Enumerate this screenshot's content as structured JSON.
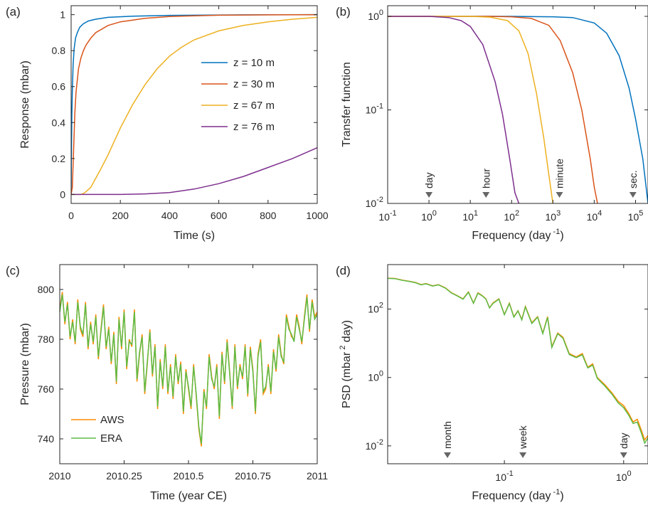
{
  "colors": {
    "blue": "#0072bd",
    "red": "#d95319",
    "yellow": "#edb120",
    "purple": "#7e2f8e",
    "orange": "#ff8c00",
    "green": "#5dbb46",
    "marker": "#666666"
  },
  "chart_data": [
    {
      "panel": "(a)",
      "type": "line",
      "xlabel": "Time (s)",
      "ylabel": "Response (mbar)",
      "xlim": [
        0,
        1000
      ],
      "ylim": [
        -0.05,
        1.05
      ],
      "xticks": [
        0,
        200,
        400,
        600,
        800,
        1000
      ],
      "yticks": [
        0,
        0.2,
        0.4,
        0.6,
        0.8,
        1
      ],
      "xtick_labels": [
        "0",
        "200",
        "400",
        "600",
        "800",
        "1000"
      ],
      "ytick_labels": [
        "0",
        "0.2",
        "0.4",
        "0.6",
        "0.8",
        "1"
      ],
      "legend": "inside right",
      "series": [
        {
          "name": "z = 10 m",
          "color": "blue",
          "x": [
            0,
            1,
            3,
            5,
            8,
            12,
            18,
            25,
            35,
            50,
            70,
            100,
            150,
            250,
            400,
            700,
            1000
          ],
          "y": [
            0,
            0.18,
            0.43,
            0.58,
            0.72,
            0.81,
            0.87,
            0.9,
            0.93,
            0.95,
            0.965,
            0.975,
            0.985,
            0.992,
            0.996,
            0.999,
            1
          ]
        },
        {
          "name": "z = 30 m",
          "color": "red",
          "x": [
            0,
            5,
            10,
            15,
            20,
            30,
            40,
            50,
            60,
            80,
            100,
            150,
            200,
            300,
            400,
            600,
            800,
            1000
          ],
          "y": [
            0,
            0.04,
            0.25,
            0.45,
            0.57,
            0.7,
            0.76,
            0.8,
            0.83,
            0.87,
            0.9,
            0.94,
            0.96,
            0.98,
            0.99,
            0.997,
            0.999,
            1
          ]
        },
        {
          "name": "z = 67 m",
          "color": "yellow",
          "x": [
            0,
            40,
            50,
            60,
            80,
            100,
            120,
            150,
            200,
            250,
            300,
            350,
            400,
            450,
            500,
            600,
            700,
            800,
            900,
            1000
          ],
          "y": [
            0,
            0,
            0.005,
            0.015,
            0.04,
            0.09,
            0.14,
            0.22,
            0.37,
            0.5,
            0.61,
            0.7,
            0.77,
            0.82,
            0.86,
            0.91,
            0.94,
            0.96,
            0.975,
            0.985
          ]
        },
        {
          "name": "z = 76 m",
          "color": "purple",
          "x": [
            0,
            200,
            300,
            400,
            500,
            600,
            700,
            800,
            900,
            1000
          ],
          "y": [
            0,
            0,
            0.003,
            0.01,
            0.03,
            0.06,
            0.1,
            0.15,
            0.2,
            0.26
          ]
        }
      ]
    },
    {
      "panel": "(b)",
      "type": "line",
      "xscale": "log",
      "yscale": "log",
      "xlabel": "Frequency (day",
      "xlabel_exp": "-1",
      "xlabel_end": ")",
      "ylabel": "Transfer function",
      "xlim": [
        0.1,
        200000
      ],
      "ylim": [
        0.01,
        1.3
      ],
      "xticks": [
        0.1,
        1,
        10,
        100,
        1000,
        10000,
        100000
      ],
      "xtick_exps": [
        "-1",
        "0",
        "1",
        "2",
        "3",
        "4",
        "5"
      ],
      "yticks": [
        0.01,
        0.1,
        1
      ],
      "ytick_exps": [
        "-2",
        "-1",
        "0"
      ],
      "markers": [
        {
          "label": "day",
          "x": 1
        },
        {
          "label": "hour",
          "x": 24
        },
        {
          "label": "minute",
          "x": 1440
        },
        {
          "label": "sec.",
          "x": 86400
        }
      ],
      "series": [
        {
          "name": "z = 10 m",
          "color": "blue",
          "x": [
            0.1,
            100,
            1000,
            3000,
            10000,
            20000,
            40000,
            70000,
            100000,
            150000,
            200000
          ],
          "y": [
            1,
            1,
            0.99,
            0.97,
            0.85,
            0.66,
            0.38,
            0.17,
            0.08,
            0.03,
            0.01
          ]
        },
        {
          "name": "z = 30 m",
          "color": "red",
          "x": [
            0.1,
            30,
            100,
            300,
            800,
            1500,
            3000,
            5000,
            8000,
            10000,
            12000
          ],
          "y": [
            1,
            1,
            0.99,
            0.95,
            0.8,
            0.55,
            0.25,
            0.1,
            0.03,
            0.015,
            0.01
          ]
        },
        {
          "name": "z = 67 m",
          "color": "yellow",
          "x": [
            0.1,
            10,
            30,
            80,
            150,
            250,
            400,
            600,
            800,
            1000
          ],
          "y": [
            1,
            1,
            0.98,
            0.9,
            0.7,
            0.4,
            0.15,
            0.05,
            0.02,
            0.01
          ]
        },
        {
          "name": "z = 76 m",
          "color": "purple",
          "x": [
            0.1,
            1,
            3,
            6,
            10,
            20,
            40,
            60,
            90,
            120,
            150
          ],
          "y": [
            1,
            1,
            0.97,
            0.9,
            0.78,
            0.5,
            0.2,
            0.09,
            0.03,
            0.013,
            0.01
          ]
        }
      ]
    },
    {
      "panel": "(c)",
      "type": "line",
      "xlabel": "Time (year CE)",
      "ylabel": "Pressure (mbar)",
      "xlim": [
        2010,
        2011
      ],
      "ylim": [
        730,
        810
      ],
      "xticks": [
        2010,
        2010.25,
        2010.5,
        2010.75,
        2011
      ],
      "xtick_labels": [
        "2010",
        "2010.25",
        "2010.5",
        "2010.75",
        "2011"
      ],
      "yticks": [
        740,
        760,
        780,
        800
      ],
      "ytick_labels": [
        "740",
        "760",
        "780",
        "800"
      ],
      "legend": "bottom-left",
      "series": [
        {
          "name": "AWS",
          "color": "orange",
          "x": [
            2010,
            2010.01,
            2010.02,
            2010.03,
            2010.04,
            2010.05,
            2010.06,
            2010.07,
            2010.08,
            2010.09,
            2010.1,
            2010.11,
            2010.12,
            2010.13,
            2010.14,
            2010.15,
            2010.16,
            2010.17,
            2010.18,
            2010.19,
            2010.2,
            2010.21,
            2010.22,
            2010.23,
            2010.24,
            2010.25,
            2010.26,
            2010.27,
            2010.28,
            2010.29,
            2010.3,
            2010.31,
            2010.32,
            2010.33,
            2010.34,
            2010.35,
            2010.36,
            2010.37,
            2010.38,
            2010.39,
            2010.4,
            2010.41,
            2010.42,
            2010.43,
            2010.44,
            2010.45,
            2010.46,
            2010.47,
            2010.48,
            2010.49,
            2010.5,
            2010.51,
            2010.52,
            2010.53,
            2010.54,
            2010.55,
            2010.56,
            2010.57,
            2010.58,
            2010.59,
            2010.6,
            2010.61,
            2010.62,
            2010.63,
            2010.64,
            2010.65,
            2010.66,
            2010.67,
            2010.68,
            2010.69,
            2010.7,
            2010.71,
            2010.72,
            2010.73,
            2010.74,
            2010.75,
            2010.76,
            2010.77,
            2010.78,
            2010.79,
            2010.8,
            2010.81,
            2010.82,
            2010.83,
            2010.84,
            2010.85,
            2010.86,
            2010.87,
            2010.88,
            2010.89,
            2010.9,
            2010.91,
            2010.92,
            2010.93,
            2010.94,
            2010.95,
            2010.96,
            2010.97,
            2010.98,
            2010.99,
            2011
          ],
          "y": [
            792,
            799,
            786,
            795,
            780,
            788,
            778,
            796,
            784,
            781,
            795,
            776,
            787,
            778,
            790,
            772,
            784,
            794,
            776,
            785,
            770,
            783,
            762,
            789,
            776,
            792,
            768,
            780,
            777,
            792,
            763,
            774,
            782,
            758,
            770,
            784,
            765,
            778,
            752,
            772,
            760,
            778,
            758,
            770,
            756,
            774,
            762,
            771,
            750,
            768,
            760,
            752,
            770,
            757,
            744,
            737,
            760,
            752,
            774,
            765,
            760,
            770,
            748,
            775,
            762,
            780,
            767,
            752,
            778,
            760,
            770,
            764,
            778,
            757,
            777,
            768,
            750,
            774,
            780,
            758,
            760,
            770,
            758,
            776,
            767,
            782,
            774,
            770,
            790,
            785,
            781,
            780,
            790,
            785,
            778,
            789,
            798,
            783,
            796,
            789,
            791
          ]
        },
        {
          "name": "ERA",
          "color": "green",
          "x": [
            2010,
            2010.01,
            2010.02,
            2010.03,
            2010.04,
            2010.05,
            2010.06,
            2010.07,
            2010.08,
            2010.09,
            2010.1,
            2010.11,
            2010.12,
            2010.13,
            2010.14,
            2010.15,
            2010.16,
            2010.17,
            2010.18,
            2010.19,
            2010.2,
            2010.21,
            2010.22,
            2010.23,
            2010.24,
            2010.25,
            2010.26,
            2010.27,
            2010.28,
            2010.29,
            2010.3,
            2010.31,
            2010.32,
            2010.33,
            2010.34,
            2010.35,
            2010.36,
            2010.37,
            2010.38,
            2010.39,
            2010.4,
            2010.41,
            2010.42,
            2010.43,
            2010.44,
            2010.45,
            2010.46,
            2010.47,
            2010.48,
            2010.49,
            2010.5,
            2010.51,
            2010.52,
            2010.53,
            2010.54,
            2010.55,
            2010.56,
            2010.57,
            2010.58,
            2010.59,
            2010.6,
            2010.61,
            2010.62,
            2010.63,
            2010.64,
            2010.65,
            2010.66,
            2010.67,
            2010.68,
            2010.69,
            2010.7,
            2010.71,
            2010.72,
            2010.73,
            2010.74,
            2010.75,
            2010.76,
            2010.77,
            2010.78,
            2010.79,
            2010.8,
            2010.81,
            2010.82,
            2010.83,
            2010.84,
            2010.85,
            2010.86,
            2010.87,
            2010.88,
            2010.89,
            2010.9,
            2010.91,
            2010.92,
            2010.93,
            2010.94,
            2010.95,
            2010.96,
            2010.97,
            2010.98,
            2010.99,
            2011
          ],
          "y": [
            791,
            798,
            787,
            794,
            781,
            787,
            779,
            795,
            785,
            782,
            794,
            777,
            786,
            779,
            789,
            773,
            783,
            793,
            777,
            784,
            771,
            782,
            763,
            788,
            777,
            791,
            769,
            779,
            778,
            791,
            764,
            775,
            781,
            759,
            771,
            783,
            766,
            777,
            753,
            771,
            761,
            777,
            759,
            769,
            757,
            773,
            763,
            770,
            751,
            767,
            761,
            753,
            769,
            758,
            745,
            738,
            759,
            753,
            773,
            764,
            761,
            769,
            749,
            774,
            763,
            779,
            766,
            753,
            777,
            761,
            769,
            765,
            777,
            758,
            776,
            767,
            751,
            773,
            779,
            759,
            761,
            769,
            759,
            775,
            768,
            781,
            773,
            771,
            789,
            784,
            782,
            779,
            789,
            784,
            779,
            788,
            797,
            784,
            795,
            788,
            790
          ]
        }
      ]
    },
    {
      "panel": "(d)",
      "type": "line",
      "xscale": "log",
      "yscale": "log",
      "xlabel": "Frequency (day",
      "xlabel_exp": "-1",
      "xlabel_end": ")",
      "ylabel": "PSD (mbar",
      "ylabel_exp": "2",
      "ylabel_end": "day)",
      "xlim": [
        0.0105,
        1.6
      ],
      "ylim": [
        0.003,
        2000
      ],
      "xticks": [
        0.1,
        1
      ],
      "xtick_exps": [
        "-1",
        "0"
      ],
      "yticks": [
        0.01,
        1,
        100
      ],
      "ytick_exps": [
        "-2",
        "0",
        "2"
      ],
      "markers": [
        {
          "label": "month",
          "x": 0.0333
        },
        {
          "label": "week",
          "x": 0.1429
        },
        {
          "label": "day",
          "x": 1
        }
      ],
      "series": [
        {
          "name": "AWS",
          "color": "orange",
          "x": [
            0.0105,
            0.012,
            0.014,
            0.016,
            0.018,
            0.02,
            0.022,
            0.025,
            0.028,
            0.032,
            0.036,
            0.04,
            0.045,
            0.05,
            0.055,
            0.06,
            0.065,
            0.07,
            0.075,
            0.08,
            0.09,
            0.1,
            0.11,
            0.12,
            0.13,
            0.14,
            0.15,
            0.17,
            0.19,
            0.21,
            0.23,
            0.25,
            0.28,
            0.31,
            0.35,
            0.4,
            0.45,
            0.5,
            0.55,
            0.6,
            0.7,
            0.8,
            0.9,
            1,
            1.1,
            1.2,
            1.3,
            1.4,
            1.5,
            1.6
          ],
          "y": [
            800,
            790,
            700,
            650,
            600,
            520,
            560,
            480,
            520,
            420,
            300,
            250,
            200,
            320,
            150,
            300,
            250,
            200,
            110,
            150,
            200,
            70,
            150,
            60,
            90,
            50,
            120,
            40,
            60,
            20,
            60,
            8,
            20,
            15,
            5,
            4,
            5,
            2,
            2.5,
            1,
            0.6,
            0.35,
            0.2,
            0.15,
            0.09,
            0.05,
            0.06,
            0.03,
            0.015,
            0.02
          ]
        },
        {
          "name": "ERA",
          "color": "green",
          "x": [
            0.0105,
            0.012,
            0.014,
            0.016,
            0.018,
            0.02,
            0.022,
            0.025,
            0.028,
            0.032,
            0.036,
            0.04,
            0.045,
            0.05,
            0.055,
            0.06,
            0.065,
            0.07,
            0.075,
            0.08,
            0.09,
            0.1,
            0.11,
            0.12,
            0.13,
            0.14,
            0.15,
            0.17,
            0.19,
            0.21,
            0.23,
            0.25,
            0.28,
            0.31,
            0.35,
            0.4,
            0.45,
            0.5,
            0.55,
            0.6,
            0.7,
            0.8,
            0.9,
            1,
            1.1,
            1.2,
            1.3,
            1.4,
            1.5,
            1.6
          ],
          "y": [
            790,
            780,
            690,
            640,
            590,
            510,
            550,
            470,
            510,
            410,
            295,
            245,
            195,
            310,
            148,
            290,
            245,
            195,
            108,
            145,
            195,
            68,
            145,
            58,
            88,
            48,
            115,
            38,
            58,
            19,
            57,
            7.5,
            19,
            14,
            4.7,
            3.8,
            4.6,
            1.9,
            2.3,
            0.95,
            0.55,
            0.32,
            0.18,
            0.13,
            0.08,
            0.045,
            0.05,
            0.025,
            0.012,
            0.017
          ]
        }
      ]
    }
  ]
}
